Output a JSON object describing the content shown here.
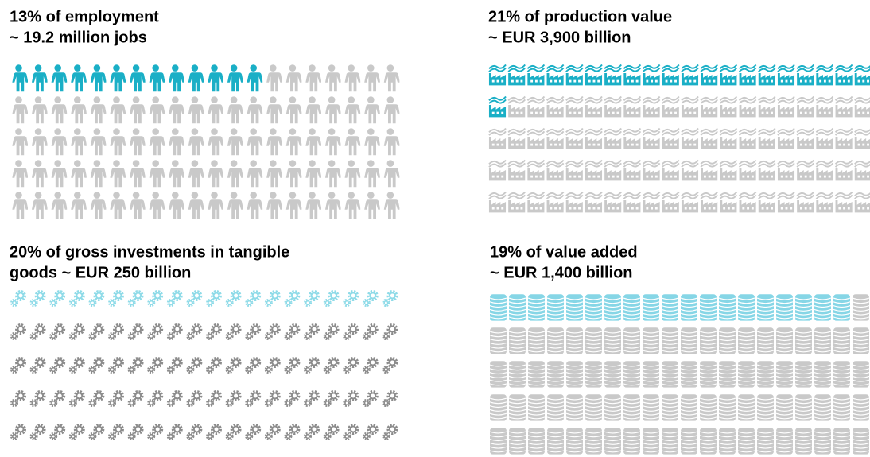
{
  "chart_data": [
    {
      "type": "pictograph",
      "icon": "person",
      "title": [
        "13% of employment",
        "~ 19.2 million jobs"
      ],
      "value": 13,
      "color": "#1aafc6",
      "rest_color": "#c9c9c9"
    },
    {
      "type": "pictograph",
      "icon": "factory",
      "title": [
        "21% of production value",
        "~ EUR 3,900 billion"
      ],
      "value": 21,
      "color": "#1aafc6",
      "rest_color": "#c9c9c9"
    },
    {
      "type": "pictograph",
      "icon": "gear",
      "title": [
        "20% of gross investments in tangible",
        "goods ~ EUR 250 billion"
      ],
      "value": 20,
      "color": "#8fdbe8",
      "rest_color": "#8c8c8c"
    },
    {
      "type": "pictograph",
      "icon": "coins",
      "title": [
        "19% of value added",
        "~ EUR 1,400 billion"
      ],
      "value": 19,
      "color": "#86d6e6",
      "rest_color": "#c9c9c9"
    }
  ]
}
